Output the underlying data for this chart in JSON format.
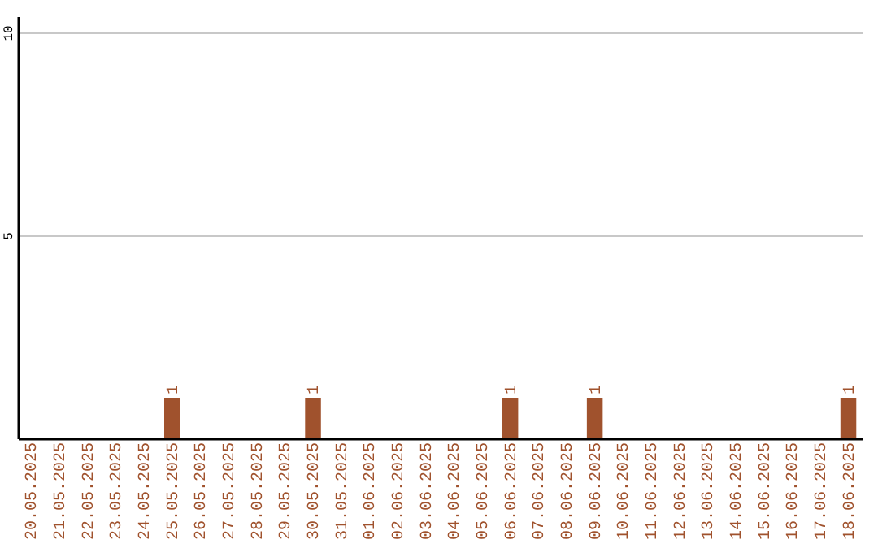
{
  "chart_data": {
    "type": "bar",
    "categories": [
      "20.05.2025",
      "21.05.2025",
      "22.05.2025",
      "23.05.2025",
      "24.05.2025",
      "25.05.2025",
      "26.05.2025",
      "27.05.2025",
      "28.05.2025",
      "29.05.2025",
      "30.05.2025",
      "31.05.2025",
      "01.06.2025",
      "02.06.2025",
      "03.06.2025",
      "04.06.2025",
      "05.06.2025",
      "06.06.2025",
      "07.06.2025",
      "08.06.2025",
      "09.06.2025",
      "10.06.2025",
      "11.06.2025",
      "12.06.2025",
      "13.06.2025",
      "14.06.2025",
      "15.06.2025",
      "16.06.2025",
      "17.06.2025",
      "18.06.2025"
    ],
    "values": [
      0,
      0,
      0,
      0,
      0,
      1,
      0,
      0,
      0,
      0,
      1,
      0,
      0,
      0,
      0,
      0,
      0,
      1,
      0,
      0,
      1,
      0,
      0,
      0,
      0,
      0,
      0,
      0,
      0,
      1
    ],
    "value_labels": [
      null,
      null,
      null,
      null,
      null,
      "1",
      null,
      null,
      null,
      null,
      "1",
      null,
      null,
      null,
      null,
      null,
      null,
      "1",
      null,
      null,
      "1",
      null,
      null,
      null,
      null,
      null,
      null,
      null,
      null,
      "1"
    ],
    "color": "#a0522d",
    "ylim": [
      0,
      10.4
    ],
    "yticks": [
      5,
      10
    ],
    "grid": "y"
  }
}
